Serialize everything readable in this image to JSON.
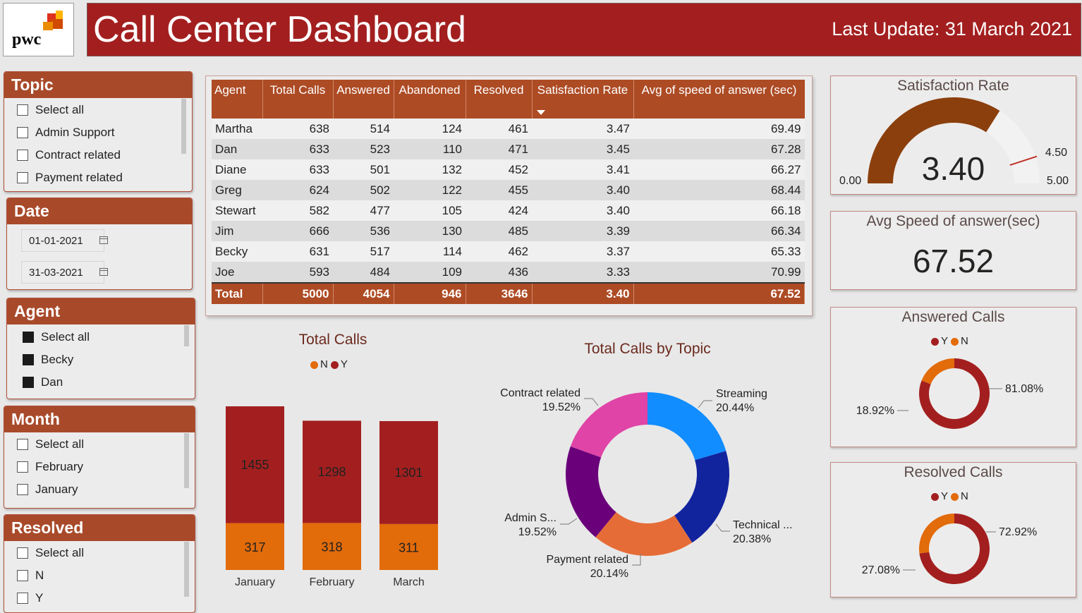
{
  "header": {
    "logo_text": "pwc",
    "title": "Call Center Dashboard",
    "last_update": "Last Update:  31 March 2021"
  },
  "slicers": {
    "topic": {
      "title": "Topic",
      "options": [
        "Select all",
        "Admin Support",
        "Contract related",
        "Payment related"
      ]
    },
    "date": {
      "title": "Date",
      "start": "01-01-2021",
      "end": "31-03-2021"
    },
    "agent": {
      "title": "Agent",
      "options": [
        "Select all",
        "Becky",
        "Dan"
      ]
    },
    "month": {
      "title": "Month",
      "options": [
        "Select all",
        "February",
        "January"
      ]
    },
    "resolved": {
      "title": "Resolved",
      "options": [
        "Select all",
        "N",
        "Y"
      ]
    }
  },
  "table": {
    "headers": [
      "Agent",
      "Total Calls",
      "Answered",
      "Abandoned",
      "Resolved",
      "Satisfaction Rate",
      "Avg of speed of answer (sec)"
    ],
    "rows": [
      [
        "Martha",
        "638",
        "514",
        "124",
        "461",
        "3.47",
        "69.49"
      ],
      [
        "Dan",
        "633",
        "523",
        "110",
        "471",
        "3.45",
        "67.28"
      ],
      [
        "Diane",
        "633",
        "501",
        "132",
        "452",
        "3.41",
        "66.27"
      ],
      [
        "Greg",
        "624",
        "502",
        "122",
        "455",
        "3.40",
        "68.44"
      ],
      [
        "Stewart",
        "582",
        "477",
        "105",
        "424",
        "3.40",
        "66.18"
      ],
      [
        "Jim",
        "666",
        "536",
        "130",
        "485",
        "3.39",
        "66.34"
      ],
      [
        "Becky",
        "631",
        "517",
        "114",
        "462",
        "3.37",
        "65.33"
      ],
      [
        "Joe",
        "593",
        "484",
        "109",
        "436",
        "3.33",
        "70.99"
      ]
    ],
    "total": [
      "Total",
      "5000",
      "4054",
      "946",
      "3646",
      "3.40",
      "67.52"
    ]
  },
  "satisfaction": {
    "title": "Satisfaction Rate",
    "value": "3.40",
    "min_label": "0.00",
    "max_label": "5.00",
    "target_label": "4.50",
    "value_num": 3.4,
    "min": 0,
    "max": 5,
    "target": 4.5
  },
  "avg_speed": {
    "title": "Avg Speed of answer(sec)",
    "value": "67.52"
  },
  "colors": {
    "header_red": "#a31f1f",
    "slicer_orange": "#a84a2a",
    "Y": "#a31f1f",
    "N": "#e26b0a",
    "gauge_fill": "#8b3f0c",
    "gauge_track": "#f2f2f2",
    "gauge_target": "#c0302a"
  },
  "chart_data": [
    {
      "type": "bar",
      "title": "Total Calls",
      "legend": [
        "N",
        "Y"
      ],
      "categories": [
        "January",
        "February",
        "March"
      ],
      "series": [
        {
          "name": "Y",
          "values": [
            1455,
            1298,
            1301
          ],
          "color": "#a31f1f"
        },
        {
          "name": "N",
          "values": [
            317,
            318,
            311
          ],
          "color": "#e26b0a"
        }
      ],
      "stacked": true
    },
    {
      "type": "pie",
      "title": "Total Calls by Topic",
      "donut": true,
      "slices": [
        {
          "name": "Streaming",
          "value": 20.44,
          "label": "Streaming",
          "pct": "20.44%",
          "color": "#118dff"
        },
        {
          "name": "Technical",
          "value": 20.38,
          "label": "Technical ...",
          "pct": "20.38%",
          "color": "#12239e"
        },
        {
          "name": "Payment related",
          "value": 20.14,
          "label": "Payment related",
          "pct": "20.14%",
          "color": "#e66c37"
        },
        {
          "name": "Admin Support",
          "value": 19.52,
          "label": "Admin S...",
          "pct": "19.52%",
          "color": "#6b007b"
        },
        {
          "name": "Contract related",
          "value": 19.52,
          "label": "Contract related",
          "pct": "19.52%",
          "color": "#e044a7"
        }
      ]
    },
    {
      "type": "pie",
      "title": "Answered Calls",
      "donut": true,
      "legend": [
        "Y",
        "N"
      ],
      "slices": [
        {
          "name": "Y",
          "value": 81.08,
          "pct": "81.08%",
          "color": "#a31f1f"
        },
        {
          "name": "N",
          "value": 18.92,
          "pct": "18.92%",
          "color": "#e26b0a"
        }
      ]
    },
    {
      "type": "pie",
      "title": "Resolved Calls",
      "donut": true,
      "legend": [
        "Y",
        "N"
      ],
      "slices": [
        {
          "name": "Y",
          "value": 72.92,
          "pct": "72.92%",
          "color": "#a31f1f"
        },
        {
          "name": "N",
          "value": 27.08,
          "pct": "27.08%",
          "color": "#e26b0a"
        }
      ]
    }
  ]
}
